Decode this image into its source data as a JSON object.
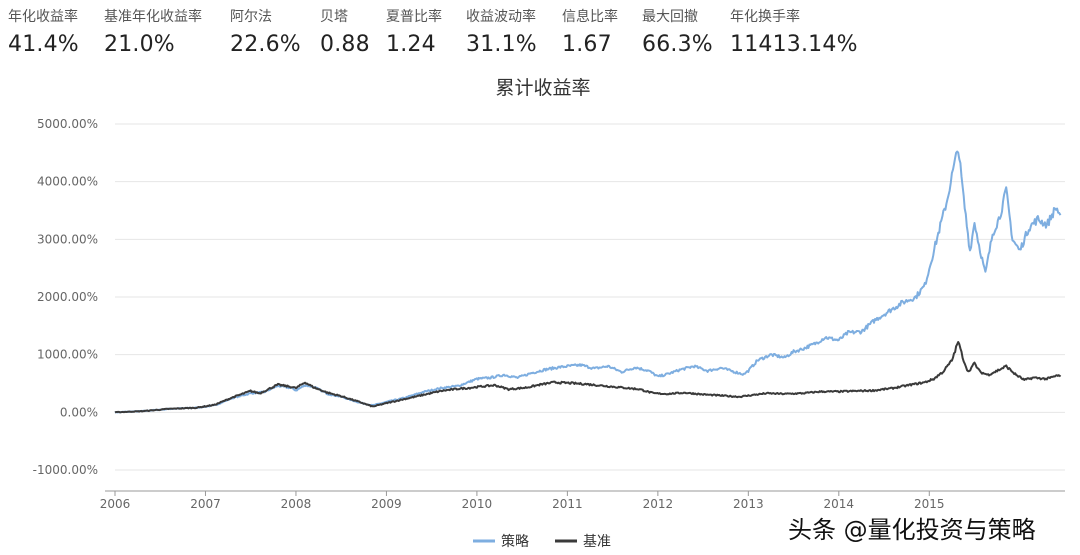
{
  "metrics": [
    {
      "label": "年化收益率",
      "value": "41.4%"
    },
    {
      "label": "基准年化收益率",
      "value": "21.0%"
    },
    {
      "label": "阿尔法",
      "value": "22.6%"
    },
    {
      "label": "贝塔",
      "value": "0.88"
    },
    {
      "label": "夏普比率",
      "value": "1.24"
    },
    {
      "label": "收益波动率",
      "value": "31.1%"
    },
    {
      "label": "信息比率",
      "value": "1.67"
    },
    {
      "label": "最大回撤",
      "value": "66.3%"
    },
    {
      "label": "年化换手率",
      "value": "11413.14%"
    }
  ],
  "watermark": "头条 @量化投资与策略",
  "colors": {
    "strategy": "#7eaee0",
    "benchmark": "#3a3a3a",
    "grid": "#e6e6e6",
    "axis": "#999999"
  },
  "chart_data": {
    "type": "line",
    "title": "累计收益率",
    "ylim": [
      -1000,
      5000
    ],
    "yticks": [
      -1000,
      0,
      1000,
      2000,
      3000,
      4000,
      5000
    ],
    "ytick_labels": [
      "-1000.00%",
      "0.00%",
      "1000.00%",
      "2000.00%",
      "3000.00%",
      "4000.00%",
      "5000.00%"
    ],
    "xticks": [
      "2006",
      "2007",
      "2008",
      "2009",
      "2010",
      "2011",
      "2012",
      "2013",
      "2014",
      "2015"
    ],
    "legend_position": "bottom-center",
    "grid": true,
    "series": [
      {
        "name": "策略",
        "color": "#7eaee0",
        "points": [
          [
            2006.0,
            0
          ],
          [
            2006.3,
            20
          ],
          [
            2006.6,
            60
          ],
          [
            2006.9,
            80
          ],
          [
            2007.1,
            120
          ],
          [
            2007.3,
            250
          ],
          [
            2007.5,
            330
          ],
          [
            2007.65,
            350
          ],
          [
            2007.8,
            460
          ],
          [
            2007.95,
            420
          ],
          [
            2008.0,
            380
          ],
          [
            2008.1,
            470
          ],
          [
            2008.2,
            440
          ],
          [
            2008.35,
            320
          ],
          [
            2008.5,
            270
          ],
          [
            2008.7,
            170
          ],
          [
            2008.85,
            120
          ],
          [
            2009.0,
            180
          ],
          [
            2009.2,
            250
          ],
          [
            2009.4,
            350
          ],
          [
            2009.6,
            420
          ],
          [
            2009.8,
            460
          ],
          [
            2009.9,
            520
          ],
          [
            2010.0,
            580
          ],
          [
            2010.15,
            600
          ],
          [
            2010.3,
            650
          ],
          [
            2010.45,
            600
          ],
          [
            2010.6,
            680
          ],
          [
            2010.75,
            740
          ],
          [
            2010.9,
            780
          ],
          [
            2011.0,
            800
          ],
          [
            2011.15,
            820
          ],
          [
            2011.3,
            760
          ],
          [
            2011.45,
            800
          ],
          [
            2011.6,
            700
          ],
          [
            2011.75,
            780
          ],
          [
            2011.9,
            720
          ],
          [
            2012.0,
            620
          ],
          [
            2012.1,
            660
          ],
          [
            2012.25,
            740
          ],
          [
            2012.4,
            800
          ],
          [
            2012.55,
            720
          ],
          [
            2012.7,
            770
          ],
          [
            2012.85,
            700
          ],
          [
            2012.95,
            660
          ],
          [
            2013.0,
            720
          ],
          [
            2013.1,
            900
          ],
          [
            2013.25,
            1000
          ],
          [
            2013.4,
            950
          ],
          [
            2013.5,
            1050
          ],
          [
            2013.6,
            1100
          ],
          [
            2013.75,
            1200
          ],
          [
            2013.85,
            1300
          ],
          [
            2014.0,
            1250
          ],
          [
            2014.1,
            1380
          ],
          [
            2014.25,
            1400
          ],
          [
            2014.4,
            1600
          ],
          [
            2014.55,
            1750
          ],
          [
            2014.7,
            1900
          ],
          [
            2014.85,
            2000
          ],
          [
            2014.95,
            2200
          ],
          [
            2015.0,
            2500
          ],
          [
            2015.1,
            3100
          ],
          [
            2015.2,
            3700
          ],
          [
            2015.25,
            4100
          ],
          [
            2015.32,
            4600
          ],
          [
            2015.38,
            3700
          ],
          [
            2015.45,
            2800
          ],
          [
            2015.5,
            3300
          ],
          [
            2015.55,
            2900
          ],
          [
            2015.62,
            2400
          ],
          [
            2015.7,
            3100
          ],
          [
            2015.78,
            3400
          ],
          [
            2015.85,
            3850
          ],
          [
            2015.92,
            3000
          ],
          [
            2016.0,
            2800
          ],
          [
            2016.1,
            3200
          ],
          [
            2016.2,
            3350
          ],
          [
            2016.3,
            3250
          ],
          [
            2016.4,
            3550
          ],
          [
            2016.45,
            3420
          ]
        ]
      },
      {
        "name": "基准",
        "color": "#3a3a3a",
        "points": [
          [
            2006.0,
            0
          ],
          [
            2006.3,
            20
          ],
          [
            2006.6,
            60
          ],
          [
            2006.9,
            80
          ],
          [
            2007.1,
            130
          ],
          [
            2007.3,
            260
          ],
          [
            2007.5,
            370
          ],
          [
            2007.6,
            330
          ],
          [
            2007.8,
            480
          ],
          [
            2007.95,
            440
          ],
          [
            2008.0,
            420
          ],
          [
            2008.1,
            520
          ],
          [
            2008.2,
            430
          ],
          [
            2008.35,
            340
          ],
          [
            2008.5,
            280
          ],
          [
            2008.7,
            180
          ],
          [
            2008.85,
            100
          ],
          [
            2009.0,
            160
          ],
          [
            2009.2,
            230
          ],
          [
            2009.4,
            300
          ],
          [
            2009.6,
            370
          ],
          [
            2009.8,
            410
          ],
          [
            2009.9,
            420
          ],
          [
            2010.0,
            440
          ],
          [
            2010.2,
            470
          ],
          [
            2010.35,
            400
          ],
          [
            2010.55,
            430
          ],
          [
            2010.7,
            480
          ],
          [
            2010.85,
            520
          ],
          [
            2011.0,
            510
          ],
          [
            2011.2,
            490
          ],
          [
            2011.4,
            460
          ],
          [
            2011.6,
            430
          ],
          [
            2011.8,
            400
          ],
          [
            2011.95,
            330
          ],
          [
            2012.1,
            320
          ],
          [
            2012.3,
            340
          ],
          [
            2012.5,
            310
          ],
          [
            2012.7,
            290
          ],
          [
            2012.9,
            270
          ],
          [
            2013.0,
            290
          ],
          [
            2013.2,
            330
          ],
          [
            2013.4,
            320
          ],
          [
            2013.6,
            330
          ],
          [
            2013.8,
            360
          ],
          [
            2014.0,
            360
          ],
          [
            2014.2,
            370
          ],
          [
            2014.4,
            380
          ],
          [
            2014.6,
            420
          ],
          [
            2014.8,
            480
          ],
          [
            2014.95,
            520
          ],
          [
            2015.05,
            580
          ],
          [
            2015.15,
            700
          ],
          [
            2015.25,
            900
          ],
          [
            2015.32,
            1230
          ],
          [
            2015.38,
            900
          ],
          [
            2015.43,
            700
          ],
          [
            2015.5,
            850
          ],
          [
            2015.56,
            700
          ],
          [
            2015.65,
            650
          ],
          [
            2015.75,
            720
          ],
          [
            2015.85,
            800
          ],
          [
            2015.95,
            660
          ],
          [
            2016.05,
            560
          ],
          [
            2016.15,
            600
          ],
          [
            2016.3,
            580
          ],
          [
            2016.42,
            640
          ],
          [
            2016.45,
            620
          ]
        ]
      }
    ]
  }
}
